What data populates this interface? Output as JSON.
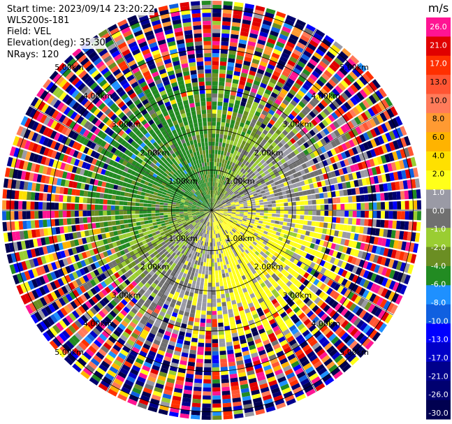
{
  "header": {
    "start_time": "Start time: 2023/09/14 23:20:22",
    "instrument": "WLS200s-181",
    "field": "Field: VEL",
    "elevation": "Elevation(deg): 35.30",
    "nrays": "NRays: 120"
  },
  "chart_data": {
    "type": "heatmap",
    "projection": "polar-ppi",
    "title": "",
    "field": "VEL",
    "units": "m/s",
    "nrays": 120,
    "range_rings_km": [
      1.0,
      2.0,
      3.0,
      4.0,
      5.0
    ],
    "range_ring_labels": [
      "1.00km",
      "2.00km",
      "3.00km",
      "4.00km",
      "5.00km"
    ],
    "max_range_km": 5.2,
    "colorbar": {
      "unit_label": "m/s",
      "tick_labels": [
        "26.0",
        "21.0",
        "17.0",
        "13.0",
        "10.0",
        "8.0",
        "6.0",
        "4.0",
        "2.0",
        "1.0",
        "0.0",
        "-1.0",
        "-2.0",
        "-4.0",
        "-6.0",
        "-8.0",
        "-10.0",
        "-13.0",
        "-17.0",
        "-21.0",
        "-26.0",
        "-30.0"
      ],
      "levels_top_to_bottom": [
        {
          "value": 26.0,
          "color": "#ff1493"
        },
        {
          "value": 21.0,
          "color": "#e00000"
        },
        {
          "value": 17.0,
          "color": "#ff3000"
        },
        {
          "value": 13.0,
          "color": "#ff5533"
        },
        {
          "value": 10.0,
          "color": "#ff7b5a"
        },
        {
          "value": 8.0,
          "color": "#ff9a32"
        },
        {
          "value": 6.0,
          "color": "#ffb300"
        },
        {
          "value": 4.0,
          "color": "#ffe000"
        },
        {
          "value": 2.0,
          "color": "#ffff1a"
        },
        {
          "value": 1.0,
          "color": "#9a9aa5"
        },
        {
          "value": 0.0,
          "color": "#707070"
        },
        {
          "value": -1.0,
          "color": "#9acd32"
        },
        {
          "value": -2.0,
          "color": "#6b8e23"
        },
        {
          "value": -4.0,
          "color": "#228b22"
        },
        {
          "value": -6.0,
          "color": "#1e90ff"
        },
        {
          "value": -8.0,
          "color": "#1060e0"
        },
        {
          "value": -10.0,
          "color": "#0000ff"
        },
        {
          "value": -13.0,
          "color": "#0000c8"
        },
        {
          "value": -17.0,
          "color": "#00008b"
        },
        {
          "value": -21.0,
          "color": "#000070"
        },
        {
          "value": -26.0,
          "color": "#000050"
        }
      ]
    },
    "wind_pattern": {
      "description": "dipole velocity field",
      "outbound_positive_azimuth_deg": 135,
      "inbound_negative_azimuth_deg": 315,
      "near_range_peak_ms": 3.0,
      "outer_ranges": "noisy/unfiltered"
    },
    "grid": true
  }
}
